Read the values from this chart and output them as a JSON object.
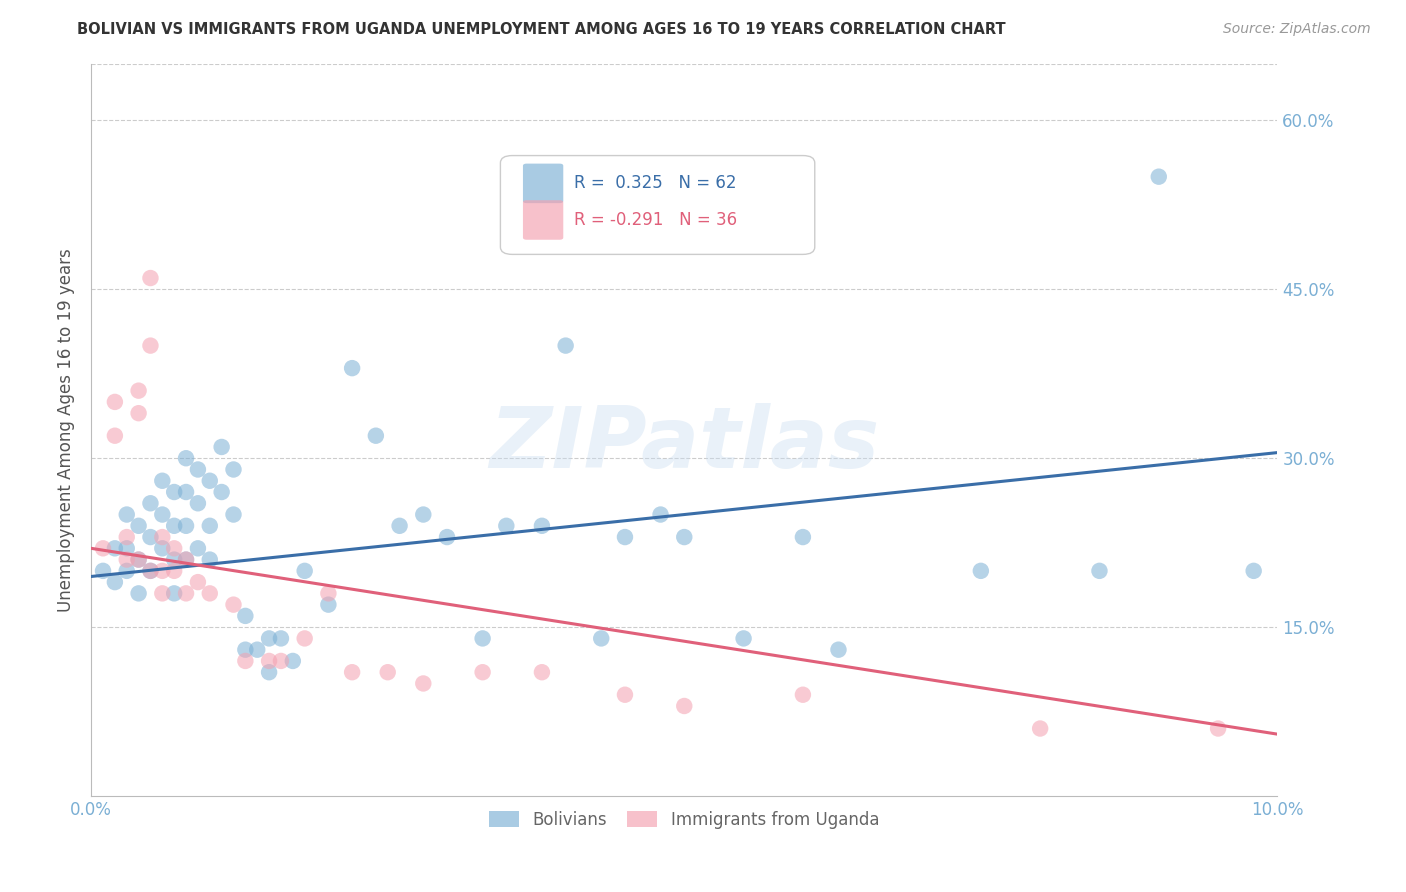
{
  "title": "BOLIVIAN VS IMMIGRANTS FROM UGANDA UNEMPLOYMENT AMONG AGES 16 TO 19 YEARS CORRELATION CHART",
  "source": "Source: ZipAtlas.com",
  "ylabel": "Unemployment Among Ages 16 to 19 years",
  "xlim": [
    0.0,
    0.1
  ],
  "ylim": [
    0.0,
    0.65
  ],
  "yticks": [
    0.0,
    0.15,
    0.3,
    0.45,
    0.6
  ],
  "ytick_labels": [
    "",
    "15.0%",
    "30.0%",
    "45.0%",
    "60.0%"
  ],
  "xticks": [
    0.0,
    0.02,
    0.04,
    0.06,
    0.08,
    0.1
  ],
  "xtick_labels": [
    "0.0%",
    "",
    "",
    "",
    "",
    "10.0%"
  ],
  "blue_color": "#7BAFD4",
  "pink_color": "#F4A0B0",
  "blue_line_color": "#3A6EA8",
  "pink_line_color": "#E0607A",
  "legend_R_blue": "0.325",
  "legend_N_blue": "62",
  "legend_R_pink": "-0.291",
  "legend_N_pink": "36",
  "legend_label_blue": "Bolivians",
  "legend_label_pink": "Immigrants from Uganda",
  "watermark": "ZIPatlas",
  "blue_scatter_x": [
    0.001,
    0.002,
    0.002,
    0.003,
    0.003,
    0.003,
    0.004,
    0.004,
    0.004,
    0.005,
    0.005,
    0.005,
    0.006,
    0.006,
    0.006,
    0.007,
    0.007,
    0.007,
    0.007,
    0.008,
    0.008,
    0.008,
    0.008,
    0.009,
    0.009,
    0.009,
    0.01,
    0.01,
    0.01,
    0.011,
    0.011,
    0.012,
    0.012,
    0.013,
    0.013,
    0.014,
    0.015,
    0.015,
    0.016,
    0.017,
    0.018,
    0.02,
    0.022,
    0.024,
    0.026,
    0.028,
    0.03,
    0.033,
    0.035,
    0.038,
    0.04,
    0.043,
    0.045,
    0.048,
    0.05,
    0.055,
    0.06,
    0.063,
    0.075,
    0.085,
    0.09,
    0.098
  ],
  "blue_scatter_y": [
    0.2,
    0.22,
    0.19,
    0.25,
    0.22,
    0.2,
    0.24,
    0.21,
    0.18,
    0.26,
    0.23,
    0.2,
    0.28,
    0.25,
    0.22,
    0.27,
    0.24,
    0.21,
    0.18,
    0.3,
    0.27,
    0.24,
    0.21,
    0.29,
    0.26,
    0.22,
    0.28,
    0.24,
    0.21,
    0.31,
    0.27,
    0.29,
    0.25,
    0.13,
    0.16,
    0.13,
    0.14,
    0.11,
    0.14,
    0.12,
    0.2,
    0.17,
    0.38,
    0.32,
    0.24,
    0.25,
    0.23,
    0.14,
    0.24,
    0.24,
    0.4,
    0.14,
    0.23,
    0.25,
    0.23,
    0.14,
    0.23,
    0.13,
    0.2,
    0.2,
    0.55,
    0.2
  ],
  "pink_scatter_x": [
    0.001,
    0.002,
    0.002,
    0.003,
    0.003,
    0.004,
    0.004,
    0.004,
    0.005,
    0.005,
    0.005,
    0.006,
    0.006,
    0.006,
    0.007,
    0.007,
    0.008,
    0.008,
    0.009,
    0.01,
    0.012,
    0.013,
    0.015,
    0.016,
    0.018,
    0.02,
    0.022,
    0.025,
    0.028,
    0.033,
    0.038,
    0.045,
    0.05,
    0.06,
    0.08,
    0.095
  ],
  "pink_scatter_y": [
    0.22,
    0.35,
    0.32,
    0.23,
    0.21,
    0.36,
    0.34,
    0.21,
    0.46,
    0.4,
    0.2,
    0.23,
    0.2,
    0.18,
    0.22,
    0.2,
    0.21,
    0.18,
    0.19,
    0.18,
    0.17,
    0.12,
    0.12,
    0.12,
    0.14,
    0.18,
    0.11,
    0.11,
    0.1,
    0.11,
    0.11,
    0.09,
    0.08,
    0.09,
    0.06,
    0.06
  ],
  "blue_trend_x": [
    0.0,
    0.1
  ],
  "blue_trend_y": [
    0.195,
    0.305
  ],
  "pink_trend_x": [
    0.0,
    0.1
  ],
  "pink_trend_y": [
    0.22,
    0.055
  ],
  "background_color": "#FFFFFF",
  "grid_color": "#CCCCCC",
  "title_color": "#333333",
  "tick_color": "#7BAFD4",
  "ylabel_color": "#555555"
}
